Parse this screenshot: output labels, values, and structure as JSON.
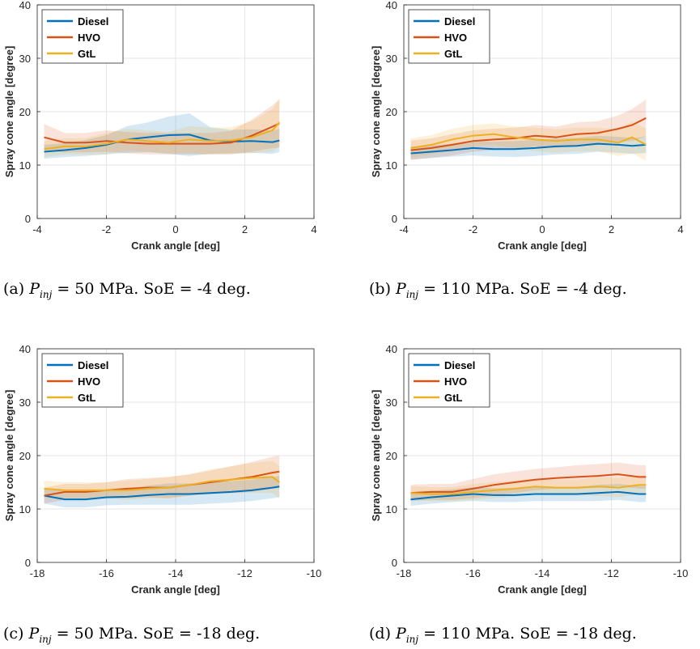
{
  "colors": {
    "diesel": "#0072BD",
    "hvo": "#D95319",
    "gtl": "#EDB120",
    "grid": "#E6E6E6",
    "axis": "#262626"
  },
  "chart_data": [
    {
      "id": "a",
      "type": "line",
      "xlabel": "Crank angle [deg]",
      "ylabel": "Spray cone angle [degree]",
      "xlim": [
        -4,
        4
      ],
      "ylim": [
        0,
        40
      ],
      "xticks": [
        "-4",
        "-2",
        "0",
        "2",
        "4"
      ],
      "yticks": [
        "0",
        "10",
        "20",
        "30",
        "40"
      ],
      "legend_position": "top-left",
      "caption": {
        "label": "(a)",
        "var": "P",
        "sub": "inj",
        "text": " = 50 MPa. SoE = -4 deg."
      },
      "x": [
        -3.8,
        -3.2,
        -2.6,
        -2.0,
        -1.4,
        -0.8,
        -0.2,
        0.4,
        1.0,
        1.6,
        2.2,
        2.8,
        3.0
      ],
      "series": [
        {
          "name": "Diesel",
          "values": [
            12.5,
            12.8,
            13.2,
            13.8,
            14.8,
            15.2,
            15.6,
            15.7,
            14.6,
            14.4,
            14.5,
            14.3,
            14.6
          ],
          "band": [
            1.3,
            1.3,
            1.5,
            1.8,
            2.5,
            2.8,
            3.5,
            4.0,
            2.5,
            2.2,
            2.2,
            2.2,
            2.2
          ]
        },
        {
          "name": "HVO",
          "values": [
            15.2,
            14.2,
            14.2,
            14.5,
            14.2,
            14.0,
            14.0,
            14.0,
            14.0,
            14.2,
            15.5,
            17.2,
            17.8
          ],
          "band": [
            2.5,
            1.8,
            1.8,
            2.0,
            2.0,
            2.0,
            2.0,
            2.0,
            2.0,
            2.2,
            3.0,
            4.0,
            4.5
          ]
        },
        {
          "name": "GtL",
          "values": [
            13.0,
            13.5,
            13.5,
            14.0,
            14.8,
            14.5,
            14.2,
            14.8,
            14.5,
            14.6,
            15.2,
            16.5,
            18.0
          ],
          "band": [
            1.5,
            1.5,
            1.5,
            2.0,
            2.0,
            2.0,
            2.0,
            2.5,
            2.5,
            2.5,
            3.0,
            4.0,
            4.5
          ]
        }
      ]
    },
    {
      "id": "b",
      "type": "line",
      "xlabel": "Crank angle [deg]",
      "ylabel": "Spray cone angle [degree]",
      "xlim": [
        -4,
        4
      ],
      "ylim": [
        0,
        40
      ],
      "xticks": [
        "-4",
        "-2",
        "0",
        "2",
        "4"
      ],
      "yticks": [
        "0",
        "10",
        "20",
        "30",
        "40"
      ],
      "legend_position": "top-left",
      "caption": {
        "label": "(b)",
        "var": "P",
        "sub": "inj",
        "text": " = 110 MPa. SoE = -4 deg."
      },
      "x": [
        -3.8,
        -3.2,
        -2.6,
        -2.0,
        -1.4,
        -0.8,
        -0.2,
        0.4,
        1.0,
        1.6,
        2.2,
        2.6,
        3.0
      ],
      "series": [
        {
          "name": "Diesel",
          "values": [
            12.2,
            12.5,
            12.8,
            13.2,
            13.0,
            13.0,
            13.2,
            13.5,
            13.6,
            14.0,
            13.8,
            13.6,
            13.8
          ],
          "band": [
            1.2,
            1.2,
            1.2,
            1.4,
            1.4,
            1.5,
            1.5,
            1.5,
            1.5,
            1.5,
            1.5,
            1.5,
            1.5
          ]
        },
        {
          "name": "HVO",
          "values": [
            12.8,
            13.2,
            13.8,
            14.5,
            14.8,
            15.0,
            15.5,
            15.2,
            15.8,
            16.0,
            16.8,
            17.5,
            18.8
          ],
          "band": [
            1.8,
            1.8,
            2.0,
            2.0,
            2.0,
            2.0,
            2.0,
            2.0,
            2.2,
            2.2,
            2.5,
            3.0,
            3.5
          ]
        },
        {
          "name": "GtL",
          "values": [
            13.2,
            13.8,
            14.8,
            15.5,
            15.8,
            15.2,
            14.8,
            14.5,
            14.8,
            14.8,
            14.2,
            15.2,
            13.8
          ],
          "band": [
            1.8,
            1.8,
            2.0,
            2.0,
            2.0,
            2.0,
            2.2,
            2.2,
            2.2,
            2.2,
            2.5,
            3.0,
            3.0
          ]
        }
      ]
    },
    {
      "id": "c",
      "type": "line",
      "xlabel": "Crank angle [deg]",
      "ylabel": "Spray cone angle [degree]",
      "xlim": [
        -18,
        -10
      ],
      "ylim": [
        0,
        40
      ],
      "xticks": [
        "-18",
        "-16",
        "-14",
        "-12",
        "-10"
      ],
      "yticks": [
        "0",
        "10",
        "20",
        "30",
        "40"
      ],
      "legend_position": "top-left",
      "caption": {
        "label": "(c)",
        "var": "P",
        "sub": "inj",
        "text": " = 50 MPa. SoE = -18 deg."
      },
      "x": [
        -17.8,
        -17.2,
        -16.6,
        -16.0,
        -15.4,
        -14.8,
        -14.2,
        -13.6,
        -13.0,
        -12.4,
        -11.8,
        -11.2,
        -11.0
      ],
      "series": [
        {
          "name": "Diesel",
          "values": [
            12.5,
            11.8,
            11.8,
            12.2,
            12.3,
            12.6,
            12.8,
            12.8,
            13.0,
            13.2,
            13.5,
            14.0,
            14.2
          ],
          "band": [
            1.5,
            1.5,
            1.5,
            1.5,
            1.5,
            1.8,
            2.0,
            2.0,
            2.0,
            2.0,
            2.0,
            2.0,
            2.0
          ]
        },
        {
          "name": "HVO",
          "values": [
            12.5,
            13.2,
            13.2,
            13.5,
            13.8,
            14.0,
            14.0,
            14.5,
            15.0,
            15.5,
            16.0,
            16.8,
            17.0
          ],
          "band": [
            1.5,
            1.5,
            1.5,
            1.5,
            1.8,
            1.8,
            2.0,
            2.0,
            2.2,
            2.5,
            2.8,
            3.0,
            3.0
          ]
        },
        {
          "name": "GtL",
          "values": [
            13.8,
            13.5,
            13.5,
            13.5,
            13.5,
            13.8,
            14.0,
            14.5,
            15.2,
            15.5,
            15.8,
            16.0,
            15.0
          ],
          "band": [
            1.5,
            1.5,
            1.5,
            1.5,
            1.8,
            1.8,
            2.0,
            2.0,
            2.2,
            2.5,
            2.8,
            3.0,
            3.0
          ]
        }
      ]
    },
    {
      "id": "d",
      "type": "line",
      "xlabel": "Crank angle [deg]",
      "ylabel": "Spray cone angle [degree]",
      "xlim": [
        -18,
        -10
      ],
      "ylim": [
        0,
        40
      ],
      "xticks": [
        "-18",
        "-16",
        "-14",
        "-12",
        "-10"
      ],
      "yticks": [
        "0",
        "10",
        "20",
        "30",
        "40"
      ],
      "legend_position": "top-left",
      "caption": {
        "label": "(d)",
        "var": "P",
        "sub": "inj",
        "text": " = 110 MPa. SoE = -18 deg."
      },
      "x": [
        -17.8,
        -17.2,
        -16.6,
        -16.0,
        -15.4,
        -14.8,
        -14.2,
        -13.6,
        -13.0,
        -12.4,
        -11.8,
        -11.2,
        -11.0
      ],
      "series": [
        {
          "name": "Diesel",
          "values": [
            11.8,
            12.2,
            12.5,
            12.8,
            12.6,
            12.6,
            12.8,
            12.8,
            12.8,
            13.0,
            13.2,
            12.8,
            12.8
          ],
          "band": [
            1.2,
            1.2,
            1.2,
            1.3,
            1.3,
            1.3,
            1.3,
            1.3,
            1.3,
            1.5,
            1.5,
            1.5,
            1.5
          ]
        },
        {
          "name": "HVO",
          "values": [
            13.0,
            13.2,
            13.2,
            13.8,
            14.5,
            15.0,
            15.5,
            15.8,
            16.0,
            16.2,
            16.5,
            16.0,
            16.0
          ],
          "band": [
            1.5,
            1.5,
            1.5,
            1.8,
            2.0,
            2.0,
            2.0,
            2.0,
            2.2,
            2.2,
            2.2,
            2.2,
            2.2
          ]
        },
        {
          "name": "GtL",
          "values": [
            13.0,
            12.8,
            12.8,
            13.2,
            13.5,
            13.8,
            14.2,
            14.0,
            14.0,
            14.2,
            14.0,
            14.5,
            14.5
          ],
          "band": [
            1.3,
            1.3,
            1.3,
            1.5,
            1.5,
            1.5,
            1.5,
            1.5,
            1.5,
            1.8,
            1.8,
            1.8,
            1.8
          ]
        }
      ]
    }
  ]
}
